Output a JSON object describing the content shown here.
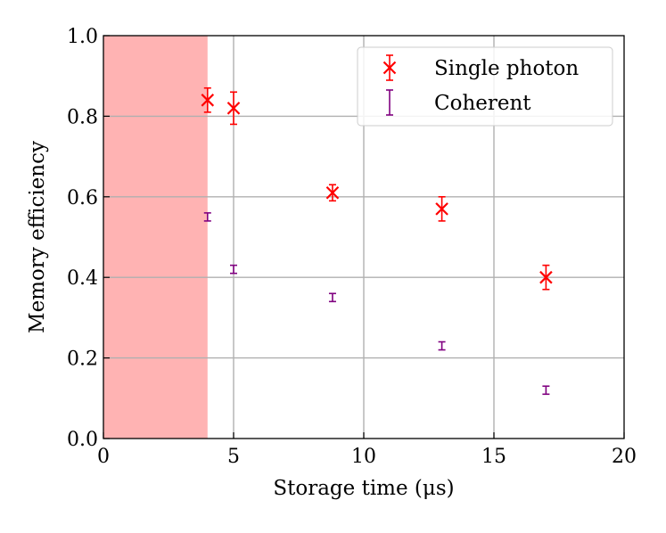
{
  "chart_data": {
    "type": "scatter",
    "xlabel": "Storage time (μs)",
    "ylabel": "Memory efficiency",
    "xlim": [
      0,
      20
    ],
    "ylim": [
      0,
      1.0
    ],
    "xticks": [
      "0",
      "5",
      "10",
      "15",
      "20"
    ],
    "yticks": [
      "0.0",
      "0.2",
      "0.4",
      "0.6",
      "0.8",
      "1.0"
    ],
    "grid": true,
    "legend_position": "top-right",
    "shaded_region": {
      "x": [
        0,
        4
      ],
      "color": "#ffb3b3"
    },
    "series": [
      {
        "name": "Single photon",
        "marker": "x",
        "color": "#ff0000",
        "points": [
          {
            "x": 4,
            "y": 0.84,
            "err": 0.03
          },
          {
            "x": 5,
            "y": 0.82,
            "err": 0.04
          },
          {
            "x": 8.8,
            "y": 0.61,
            "err": 0.02
          },
          {
            "x": 13,
            "y": 0.57,
            "err": 0.03
          },
          {
            "x": 17,
            "y": 0.4,
            "err": 0.03
          }
        ]
      },
      {
        "name": "Coherent",
        "marker": "none",
        "color": "#800080",
        "points": [
          {
            "x": 4,
            "y": 0.55,
            "err": 0.01
          },
          {
            "x": 5,
            "y": 0.42,
            "err": 0.01
          },
          {
            "x": 8.8,
            "y": 0.35,
            "err": 0.01
          },
          {
            "x": 13,
            "y": 0.23,
            "err": 0.01
          },
          {
            "x": 17,
            "y": 0.12,
            "err": 0.01
          }
        ]
      }
    ]
  }
}
